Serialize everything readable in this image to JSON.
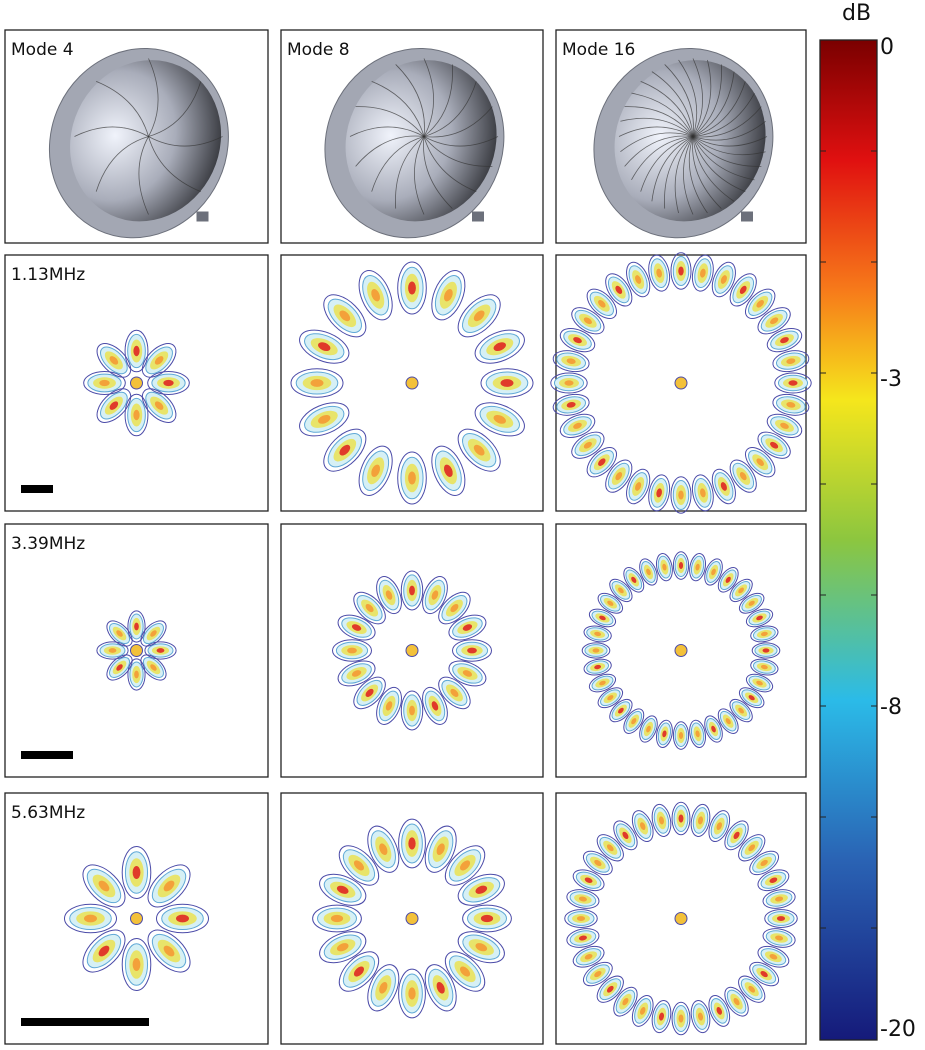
{
  "columns": [
    {
      "title": "Mode 4"
    },
    {
      "title": "Mode 8"
    },
    {
      "title": "Mode 16"
    }
  ],
  "rows": [
    {
      "label": "1.13MHz"
    },
    {
      "label": "3.39MHz"
    },
    {
      "label": "5.63MHz"
    }
  ],
  "colorbar": {
    "title": "dB",
    "labels": [
      0,
      -3,
      -8,
      -20
    ]
  }
}
